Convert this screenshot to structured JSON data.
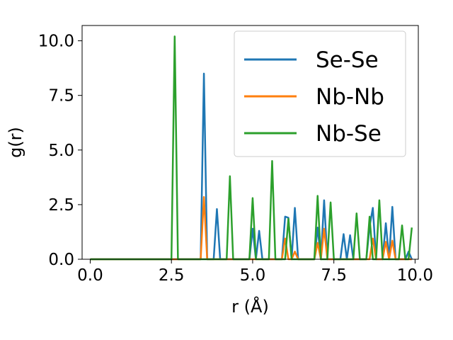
{
  "chart_data": {
    "type": "line",
    "xlabel": "r (Å)",
    "ylabel": "g(r)",
    "xlim": [
      -0.25,
      10.1
    ],
    "ylim": [
      0,
      10.7
    ],
    "xticks": [
      "0.0",
      "2.5",
      "5.0",
      "7.5",
      "10.0"
    ],
    "yticks": [
      "0.0",
      "2.5",
      "5.0",
      "7.5",
      "10.0"
    ],
    "legend_position": "top-right",
    "grid": false,
    "series": [
      {
        "name": "Se-Se",
        "color": "#1f77b4",
        "x": [
          0.0,
          3.4,
          3.5,
          3.6,
          3.8,
          3.9,
          4.0,
          4.9,
          5.0,
          5.1,
          5.2,
          5.3,
          5.4,
          5.9,
          6.0,
          6.1,
          6.2,
          6.3,
          6.4,
          6.9,
          7.0,
          7.1,
          7.2,
          7.3,
          7.7,
          7.8,
          7.9,
          8.0,
          8.1,
          8.2,
          8.5,
          8.6,
          8.7,
          8.8,
          9.0,
          9.1,
          9.2,
          9.3,
          9.4,
          9.5,
          9.7,
          9.8,
          9.9
        ],
        "y": [
          0.0,
          0.0,
          8.5,
          0.0,
          0.0,
          2.3,
          0.0,
          0.0,
          1.4,
          0.0,
          1.3,
          0.0,
          0.0,
          0.0,
          1.95,
          1.9,
          0.0,
          2.35,
          0.0,
          0.0,
          1.45,
          0.0,
          2.7,
          0.0,
          0.0,
          1.15,
          0.0,
          1.1,
          0.0,
          0.0,
          0.0,
          1.5,
          2.35,
          0.0,
          0.0,
          1.65,
          0.0,
          2.4,
          0.0,
          0.0,
          0.0,
          0.35,
          0.0
        ]
      },
      {
        "name": "Nb-Nb",
        "color": "#ff7f0e",
        "x": [
          0.0,
          3.4,
          3.5,
          3.6,
          5.9,
          6.0,
          6.1,
          6.2,
          6.3,
          6.4,
          6.9,
          7.0,
          7.1,
          7.2,
          7.3,
          8.5,
          8.6,
          8.7,
          8.8,
          9.0,
          9.1,
          9.2,
          9.3,
          9.4,
          9.5,
          9.9
        ],
        "y": [
          0.0,
          0.0,
          2.85,
          0.0,
          0.0,
          0.95,
          0.0,
          0.0,
          0.35,
          0.0,
          0.0,
          0.75,
          0.0,
          1.4,
          0.0,
          0.0,
          0.0,
          0.95,
          0.0,
          0.0,
          0.8,
          0.0,
          0.85,
          0.0,
          0.0,
          0.0
        ]
      },
      {
        "name": "Nb-Se",
        "color": "#2ca02c",
        "x": [
          0.0,
          2.5,
          2.6,
          2.7,
          4.2,
          4.3,
          4.4,
          4.9,
          5.0,
          5.1,
          5.5,
          5.6,
          5.7,
          6.0,
          6.1,
          6.2,
          6.9,
          7.0,
          7.1,
          7.3,
          7.4,
          7.5,
          8.1,
          8.2,
          8.3,
          8.5,
          8.6,
          8.7,
          8.8,
          8.9,
          9.0,
          9.5,
          9.6,
          9.7,
          9.8,
          9.9
        ],
        "y": [
          0.0,
          0.0,
          10.2,
          0.0,
          0.0,
          3.8,
          0.0,
          0.0,
          2.8,
          0.0,
          0.0,
          4.5,
          0.0,
          0.0,
          1.85,
          0.0,
          0.0,
          2.9,
          0.0,
          0.0,
          2.6,
          0.0,
          0.0,
          2.1,
          0.0,
          0.0,
          1.95,
          0.0,
          0.0,
          2.7,
          0.0,
          0.0,
          1.55,
          0.0,
          0.0,
          1.45
        ]
      }
    ]
  }
}
